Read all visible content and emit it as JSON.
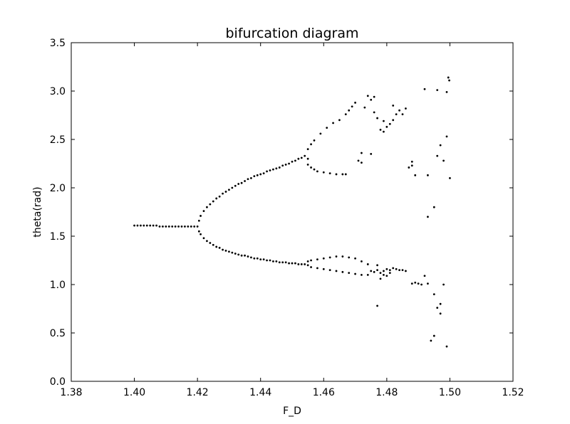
{
  "chart_data": {
    "type": "scatter",
    "title": "bifurcation diagram",
    "xlabel": "F_D",
    "ylabel": "theta(rad)",
    "xlim": [
      1.38,
      1.52
    ],
    "ylim": [
      0.0,
      3.5
    ],
    "xticks": [
      "1.38",
      "1.40",
      "1.42",
      "1.44",
      "1.46",
      "1.48",
      "1.50",
      "1.52"
    ],
    "yticks": [
      "0.0",
      "0.5",
      "1.0",
      "1.5",
      "2.0",
      "2.5",
      "3.0",
      "3.5"
    ],
    "grid": false,
    "marker_color": "#000000",
    "series": [
      {
        "points": [
          [
            1.4,
            1.61
          ],
          [
            1.401,
            1.61
          ],
          [
            1.402,
            1.61
          ],
          [
            1.403,
            1.61
          ],
          [
            1.404,
            1.61
          ],
          [
            1.405,
            1.61
          ],
          [
            1.406,
            1.61
          ],
          [
            1.407,
            1.61
          ],
          [
            1.408,
            1.6
          ],
          [
            1.409,
            1.6
          ],
          [
            1.41,
            1.6
          ],
          [
            1.411,
            1.6
          ],
          [
            1.412,
            1.6
          ],
          [
            1.413,
            1.6
          ],
          [
            1.414,
            1.6
          ],
          [
            1.415,
            1.6
          ],
          [
            1.416,
            1.6
          ],
          [
            1.417,
            1.6
          ],
          [
            1.418,
            1.6
          ],
          [
            1.419,
            1.6
          ],
          [
            1.42,
            1.6
          ],
          [
            1.4205,
            1.66
          ],
          [
            1.421,
            1.71
          ],
          [
            1.422,
            1.76
          ],
          [
            1.423,
            1.8
          ],
          [
            1.424,
            1.83
          ],
          [
            1.425,
            1.86
          ],
          [
            1.426,
            1.89
          ],
          [
            1.427,
            1.91
          ],
          [
            1.428,
            1.94
          ],
          [
            1.429,
            1.96
          ],
          [
            1.43,
            1.98
          ],
          [
            1.431,
            2.0
          ],
          [
            1.432,
            2.02
          ],
          [
            1.433,
            2.04
          ],
          [
            1.434,
            2.05
          ],
          [
            1.435,
            2.07
          ],
          [
            1.436,
            2.09
          ],
          [
            1.437,
            2.1
          ],
          [
            1.438,
            2.12
          ],
          [
            1.439,
            2.13
          ],
          [
            1.44,
            2.14
          ],
          [
            1.441,
            2.15
          ],
          [
            1.442,
            2.17
          ],
          [
            1.443,
            2.18
          ],
          [
            1.444,
            2.19
          ],
          [
            1.445,
            2.2
          ],
          [
            1.446,
            2.21
          ],
          [
            1.447,
            2.23
          ],
          [
            1.448,
            2.24
          ],
          [
            1.449,
            2.25
          ],
          [
            1.45,
            2.27
          ],
          [
            1.451,
            2.28
          ],
          [
            1.452,
            2.3
          ],
          [
            1.453,
            2.31
          ],
          [
            1.454,
            2.33
          ],
          [
            1.4205,
            1.55
          ],
          [
            1.421,
            1.52
          ],
          [
            1.422,
            1.48
          ],
          [
            1.423,
            1.45
          ],
          [
            1.424,
            1.43
          ],
          [
            1.425,
            1.41
          ],
          [
            1.426,
            1.39
          ],
          [
            1.427,
            1.38
          ],
          [
            1.428,
            1.36
          ],
          [
            1.429,
            1.35
          ],
          [
            1.43,
            1.34
          ],
          [
            1.431,
            1.33
          ],
          [
            1.432,
            1.32
          ],
          [
            1.433,
            1.31
          ],
          [
            1.434,
            1.3
          ],
          [
            1.435,
            1.3
          ],
          [
            1.436,
            1.29
          ],
          [
            1.437,
            1.28
          ],
          [
            1.438,
            1.27
          ],
          [
            1.439,
            1.27
          ],
          [
            1.44,
            1.26
          ],
          [
            1.441,
            1.26
          ],
          [
            1.442,
            1.25
          ],
          [
            1.443,
            1.25
          ],
          [
            1.444,
            1.24
          ],
          [
            1.445,
            1.24
          ],
          [
            1.446,
            1.23
          ],
          [
            1.447,
            1.23
          ],
          [
            1.448,
            1.23
          ],
          [
            1.449,
            1.22
          ],
          [
            1.45,
            1.22
          ],
          [
            1.451,
            1.22
          ],
          [
            1.452,
            1.21
          ],
          [
            1.453,
            1.21
          ],
          [
            1.454,
            1.21
          ],
          [
            1.455,
            2.3
          ],
          [
            1.455,
            2.24
          ],
          [
            1.456,
            2.21
          ],
          [
            1.457,
            2.19
          ],
          [
            1.458,
            2.17
          ],
          [
            1.46,
            2.16
          ],
          [
            1.462,
            2.15
          ],
          [
            1.464,
            2.14
          ],
          [
            1.466,
            2.14
          ],
          [
            1.467,
            2.14
          ],
          [
            1.455,
            2.4
          ],
          [
            1.456,
            2.45
          ],
          [
            1.457,
            2.49
          ],
          [
            1.459,
            2.56
          ],
          [
            1.461,
            2.62
          ],
          [
            1.463,
            2.67
          ],
          [
            1.465,
            2.7
          ],
          [
            1.467,
            2.76
          ],
          [
            1.468,
            2.8
          ],
          [
            1.469,
            2.84
          ],
          [
            1.47,
            2.88
          ],
          [
            1.455,
            1.24
          ],
          [
            1.456,
            1.25
          ],
          [
            1.458,
            1.26
          ],
          [
            1.46,
            1.27
          ],
          [
            1.462,
            1.28
          ],
          [
            1.464,
            1.29
          ],
          [
            1.466,
            1.29
          ],
          [
            1.468,
            1.28
          ],
          [
            1.47,
            1.27
          ],
          [
            1.472,
            1.24
          ],
          [
            1.474,
            1.21
          ],
          [
            1.455,
            1.2
          ],
          [
            1.456,
            1.18
          ],
          [
            1.458,
            1.17
          ],
          [
            1.46,
            1.16
          ],
          [
            1.462,
            1.15
          ],
          [
            1.464,
            1.14
          ],
          [
            1.466,
            1.13
          ],
          [
            1.468,
            1.12
          ],
          [
            1.47,
            1.11
          ],
          [
            1.472,
            1.1
          ],
          [
            1.474,
            1.1
          ],
          [
            1.471,
            2.28
          ],
          [
            1.472,
            2.26
          ],
          [
            1.473,
            2.83
          ],
          [
            1.474,
            2.95
          ],
          [
            1.475,
            2.91
          ],
          [
            1.476,
            2.94
          ],
          [
            1.477,
            2.72
          ],
          [
            1.478,
            2.6
          ],
          [
            1.479,
            2.58
          ],
          [
            1.48,
            2.63
          ],
          [
            1.481,
            2.66
          ],
          [
            1.482,
            2.7
          ],
          [
            1.483,
            2.76
          ],
          [
            1.484,
            2.8
          ],
          [
            1.485,
            2.76
          ],
          [
            1.482,
            2.85
          ],
          [
            1.479,
            2.69
          ],
          [
            1.476,
            2.78
          ],
          [
            1.472,
            2.36
          ],
          [
            1.475,
            2.35
          ],
          [
            1.475,
            1.14
          ],
          [
            1.476,
            1.13
          ],
          [
            1.477,
            1.15
          ],
          [
            1.478,
            1.12
          ],
          [
            1.479,
            1.14
          ],
          [
            1.48,
            1.16
          ],
          [
            1.481,
            1.15
          ],
          [
            1.482,
            1.17
          ],
          [
            1.483,
            1.16
          ],
          [
            1.484,
            1.15
          ],
          [
            1.485,
            1.15
          ],
          [
            1.486,
            1.14
          ],
          [
            1.477,
            1.2
          ],
          [
            1.478,
            1.06
          ],
          [
            1.479,
            1.1
          ],
          [
            1.48,
            1.09
          ],
          [
            1.481,
            1.12
          ],
          [
            1.477,
            0.78
          ],
          [
            1.487,
            2.21
          ],
          [
            1.488,
            2.23
          ],
          [
            1.488,
            2.27
          ],
          [
            1.489,
            2.13
          ],
          [
            1.486,
            2.82
          ],
          [
            1.488,
            1.01
          ],
          [
            1.489,
            1.02
          ],
          [
            1.49,
            1.01
          ],
          [
            1.491,
            1.0
          ],
          [
            1.492,
            1.09
          ],
          [
            1.493,
            1.01
          ],
          [
            1.492,
            3.02
          ],
          [
            1.496,
            3.01
          ],
          [
            1.499,
            2.99
          ],
          [
            1.4995,
            3.14
          ],
          [
            1.4998,
            3.11
          ],
          [
            1.493,
            1.7
          ],
          [
            1.495,
            1.8
          ],
          [
            1.493,
            2.13
          ],
          [
            1.496,
            2.33
          ],
          [
            1.497,
            2.44
          ],
          [
            1.499,
            2.53
          ],
          [
            1.498,
            2.28
          ],
          [
            1.5,
            2.1
          ],
          [
            1.495,
            0.9
          ],
          [
            1.496,
            0.76
          ],
          [
            1.497,
            0.8
          ],
          [
            1.497,
            0.7
          ],
          [
            1.495,
            0.47
          ],
          [
            1.494,
            0.42
          ],
          [
            1.499,
            0.36
          ],
          [
            1.498,
            1.0
          ]
        ]
      }
    ]
  }
}
